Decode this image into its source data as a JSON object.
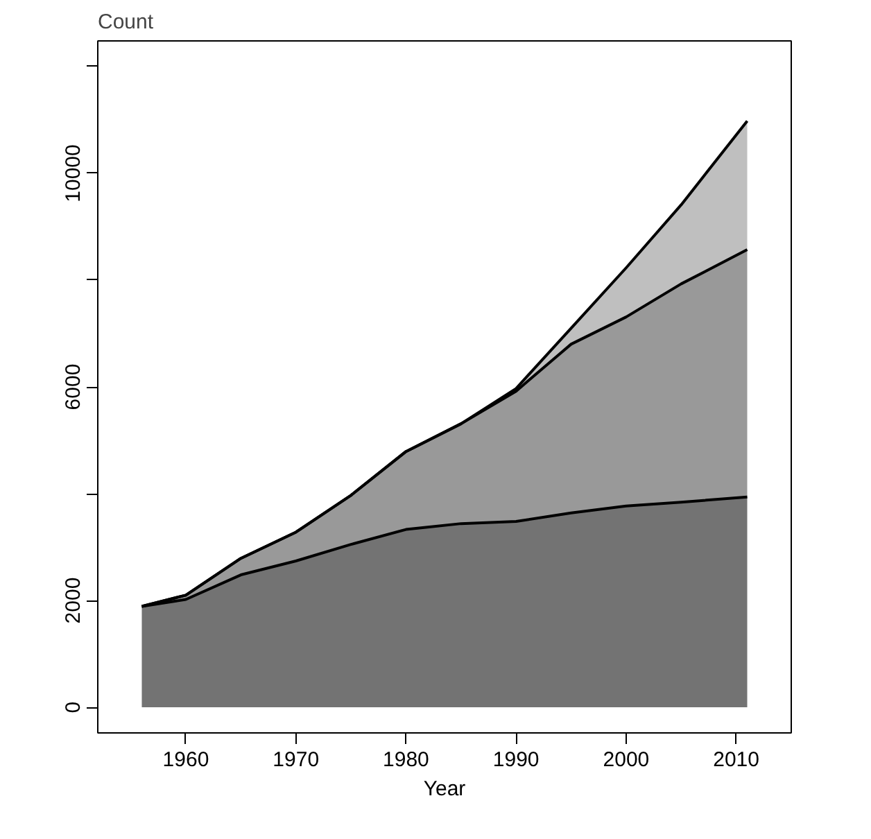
{
  "chart_data": {
    "type": "area",
    "stacked": true,
    "xlabel": "Year",
    "ylabel": "Count",
    "x": [
      1956,
      1960,
      1965,
      1970,
      1975,
      1980,
      1985,
      1990,
      1995,
      2000,
      2005,
      2011
    ],
    "series": [
      {
        "color": "#737373",
        "values": [
          1890,
          2020,
          2480,
          2740,
          3050,
          3330,
          3440,
          3480,
          3640,
          3770,
          3840,
          3940
        ]
      },
      {
        "color": "#999999",
        "values": [
          0,
          80,
          310,
          540,
          920,
          1460,
          1870,
          2440,
          3160,
          3540,
          4090,
          4630
        ]
      },
      {
        "color": "#bfbfbf",
        "values": [
          0,
          0,
          0,
          0,
          0,
          0,
          0,
          50,
          300,
          920,
          1480,
          2410
        ]
      }
    ],
    "xlim": [
      1952,
      2015
    ],
    "ylim": [
      -480,
      12480
    ],
    "xticks": [
      1960,
      1970,
      1980,
      1990,
      2000,
      2010
    ],
    "yticks": [
      0,
      2000,
      {
        "value": 4000,
        "label": null
      },
      6000,
      {
        "value": 8000,
        "label": null
      },
      10000,
      {
        "value": 12000,
        "label": null
      }
    ],
    "grid": false
  }
}
